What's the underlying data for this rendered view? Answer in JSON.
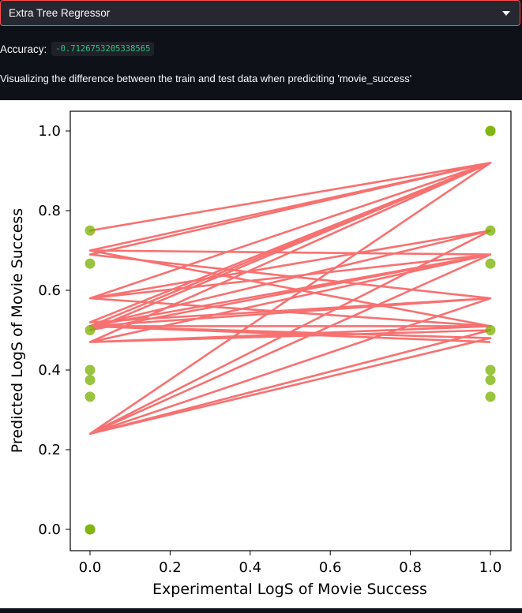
{
  "model_select": {
    "selected": "Extra Tree Regressor",
    "icon": "chevron-down-icon"
  },
  "accuracy": {
    "label": "Accuracy:",
    "value": "-0.7126753205338565"
  },
  "description": "Visualizing the difference between the train and test data when prediciting 'movie_success'",
  "colors": {
    "background": "#0e1117",
    "accent": "#ff4b4b",
    "line": "#f87171",
    "point": "#78b000",
    "code_text": "#2ec27e"
  },
  "chart_data": {
    "type": "scatter",
    "title": "",
    "xlabel": "Experimental LogS of Movie Success",
    "ylabel": "Predicted LogS of Movie Success",
    "xlim": [
      -0.05,
      1.05
    ],
    "ylim": [
      -0.05,
      1.05
    ],
    "xticks": [
      "0.0",
      "0.2",
      "0.4",
      "0.6",
      "0.8",
      "1.0"
    ],
    "yticks": [
      "0.0",
      "0.2",
      "0.4",
      "0.6",
      "0.8",
      "1.0"
    ],
    "grid": false,
    "series": [
      {
        "role": "scatter_points",
        "x": [
          0,
          0,
          0,
          0,
          0,
          0,
          0,
          0,
          1,
          1,
          1,
          1,
          1,
          1,
          1,
          1
        ],
        "y": [
          0.0,
          0.333,
          0.375,
          0.4,
          0.5,
          0.667,
          0.75,
          0.0,
          1.0,
          0.75,
          0.667,
          0.5,
          0.4,
          0.375,
          0.333,
          1.0
        ]
      },
      {
        "role": "connecting_line",
        "x": [
          1,
          0,
          1,
          0,
          1,
          0,
          1,
          0,
          1,
          0,
          1,
          0,
          1,
          0,
          1,
          0,
          1,
          0,
          1,
          0,
          1,
          0,
          1,
          0,
          1,
          0,
          1,
          0,
          1,
          0,
          1,
          0,
          1,
          0,
          1,
          0,
          1,
          0,
          1,
          0,
          1,
          0,
          1
        ],
        "y": [
          0.92,
          0.75,
          0.92,
          0.69,
          0.58,
          0.51,
          0.92,
          0.58,
          0.75,
          0.24,
          0.92,
          0.5,
          0.69,
          0.51,
          0.58,
          0.24,
          0.5,
          0.47,
          0.92,
          0.7,
          0.69,
          0.58,
          0.92,
          0.24,
          0.75,
          0.51,
          0.58,
          0.52,
          0.92,
          0.24,
          0.69,
          0.47,
          0.51,
          0.58,
          0.92,
          0.24,
          0.48,
          0.51,
          0.92,
          0.7,
          0.51,
          0.51,
          0.47
        ]
      }
    ]
  }
}
